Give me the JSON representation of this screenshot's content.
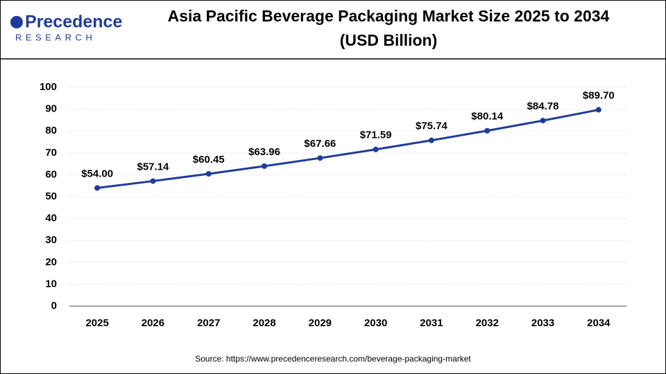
{
  "logo": {
    "name": "Precedence",
    "tagline": "RESEARCH"
  },
  "chart_data": {
    "type": "line",
    "title": "Asia Pacific Beverage Packaging Market Size 2025 to 2034",
    "subtitle": "(USD Billion)",
    "categories": [
      "2025",
      "2026",
      "2027",
      "2028",
      "2029",
      "2030",
      "2031",
      "2032",
      "2033",
      "2034"
    ],
    "values": [
      54.0,
      57.14,
      60.45,
      63.96,
      67.66,
      71.59,
      75.74,
      80.14,
      84.78,
      89.7
    ],
    "value_labels": [
      "$54.00",
      "$57.14",
      "$60.45",
      "$63.96",
      "$67.66",
      "$71.59",
      "$75.74",
      "$80.14",
      "$84.78",
      "$89.70"
    ],
    "color": "#1f3b9b",
    "ylim": [
      0,
      100
    ],
    "yticks": [
      0,
      10,
      20,
      30,
      40,
      50,
      60,
      70,
      80,
      90,
      100
    ],
    "grid": true,
    "source": "Source: https://www.precedenceresearch.com/beverage-packaging-market"
  }
}
